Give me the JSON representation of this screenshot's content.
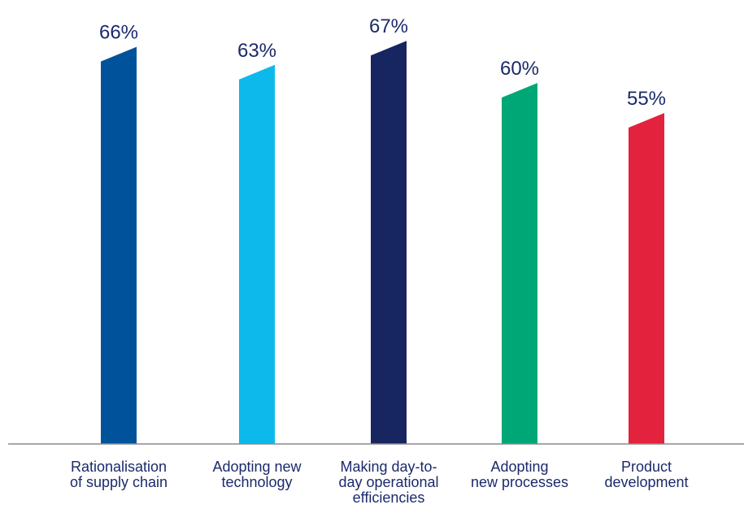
{
  "chart_data": {
    "type": "bar",
    "categories": [
      [
        "Rationalisation",
        "of supply chain"
      ],
      [
        "Adopting new",
        "technology"
      ],
      [
        "Making day-to-",
        "day operational",
        "efficiencies"
      ],
      [
        "Adopting",
        "new processes"
      ],
      [
        "Product",
        "development"
      ]
    ],
    "values": [
      66,
      63,
      67,
      60,
      55
    ],
    "value_labels": [
      "66%",
      "63%",
      "67%",
      "60%",
      "55%"
    ],
    "colors": [
      "#00539b",
      "#0cb9ea",
      "#172560",
      "#00a776",
      "#e3223e"
    ],
    "title": "",
    "xlabel": "",
    "ylabel": "",
    "ylim": [
      0,
      67
    ],
    "grid": false,
    "legend": "none"
  }
}
